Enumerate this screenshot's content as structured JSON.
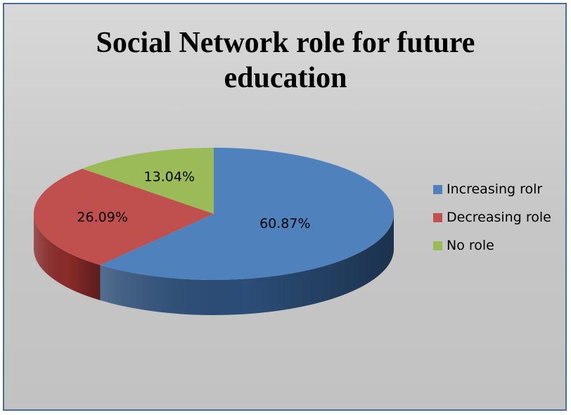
{
  "chart_data": {
    "type": "pie",
    "title": "Social Network  role for future\neducation",
    "slices": [
      {
        "name": "Increasing rolr",
        "value": 60.87,
        "label": "60.87%",
        "color": "#4f81bd",
        "side_color": "#2b4d77"
      },
      {
        "name": "Decreasing role",
        "value": 26.09,
        "label": "26.09%",
        "color": "#c0504d",
        "side_color": "#8b2c2a"
      },
      {
        "name": "No role",
        "value": 13.04,
        "label": "13.04%",
        "color": "#9bbb59",
        "side_color": "#6f8a3a"
      }
    ],
    "legend_position": "right",
    "style": "3d"
  }
}
